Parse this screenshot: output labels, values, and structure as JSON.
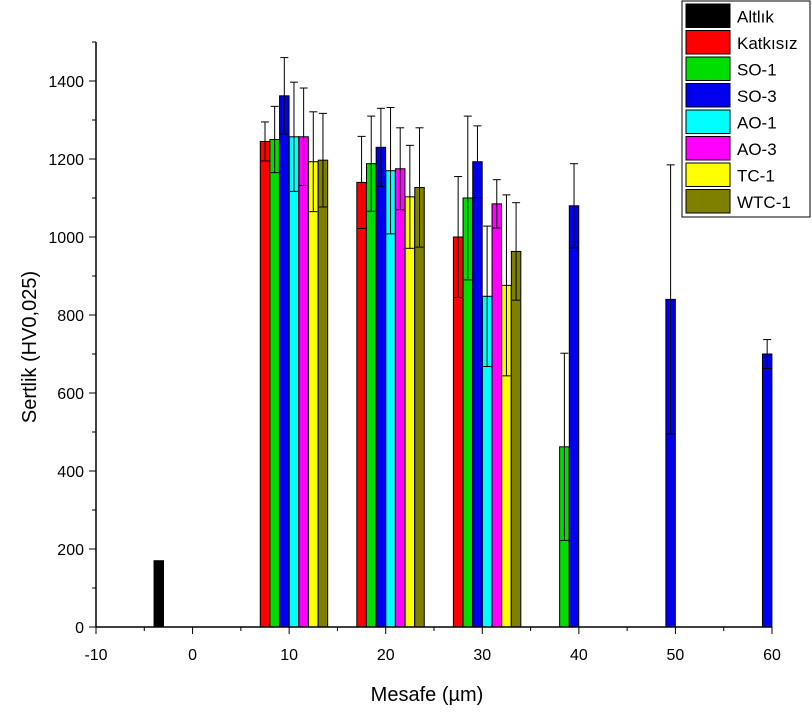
{
  "chart_data": {
    "type": "bar",
    "xlabel": "Mesafe (µm)",
    "ylabel": "Sertlik (HV0,025)",
    "xlim": [
      -10,
      60
    ],
    "ylim": [
      0,
      1500
    ],
    "x_ticks": [
      "-10",
      "0",
      "10",
      "20",
      "30",
      "40",
      "50",
      "60"
    ],
    "y_ticks": [
      "0",
      "200",
      "400",
      "600",
      "800",
      "1000",
      "1200",
      "1400"
    ],
    "legend_position": "top-right",
    "series": [
      {
        "name": "Altlık",
        "color": "#000000",
        "points": [
          {
            "x": -3.5,
            "y": 170,
            "err": 0
          }
        ]
      },
      {
        "name": "Katkısız",
        "color": "#ff0000",
        "points": [
          {
            "x": 7.5,
            "y": 1245,
            "err": 50
          },
          {
            "x": 17.5,
            "y": 1140,
            "err": 118
          },
          {
            "x": 27.5,
            "y": 1000,
            "err": 155
          }
        ]
      },
      {
        "name": "SO-1",
        "color": "#00dd00",
        "points": [
          {
            "x": 8.5,
            "y": 1250,
            "err": 85
          },
          {
            "x": 18.5,
            "y": 1188,
            "err": 122
          },
          {
            "x": 28.5,
            "y": 1100,
            "err": 210
          },
          {
            "x": 38.5,
            "y": 462,
            "err": 240
          }
        ]
      },
      {
        "name": "SO-3",
        "color": "#0000ee",
        "points": [
          {
            "x": 9.5,
            "y": 1362,
            "err": 98
          },
          {
            "x": 19.5,
            "y": 1230,
            "err": 100
          },
          {
            "x": 29.5,
            "y": 1193,
            "err": 92
          },
          {
            "x": 39.5,
            "y": 1080,
            "err": 108
          },
          {
            "x": 49.5,
            "y": 840,
            "err": 345
          },
          {
            "x": 59.5,
            "y": 700,
            "err": 37
          }
        ]
      },
      {
        "name": "AO-1",
        "color": "#00ffff",
        "points": [
          {
            "x": 10.5,
            "y": 1257,
            "err": 140
          },
          {
            "x": 20.5,
            "y": 1170,
            "err": 162
          },
          {
            "x": 30.5,
            "y": 848,
            "err": 180
          }
        ]
      },
      {
        "name": "AO-3",
        "color": "#ff00ff",
        "points": [
          {
            "x": 11.5,
            "y": 1257,
            "err": 125
          },
          {
            "x": 21.5,
            "y": 1175,
            "err": 105
          },
          {
            "x": 31.5,
            "y": 1085,
            "err": 62
          }
        ]
      },
      {
        "name": "TC-1",
        "color": "#ffff00",
        "points": [
          {
            "x": 12.5,
            "y": 1193,
            "err": 128
          },
          {
            "x": 22.5,
            "y": 1103,
            "err": 132
          },
          {
            "x": 32.5,
            "y": 876,
            "err": 232
          }
        ]
      },
      {
        "name": "WTC-1",
        "color": "#808000",
        "points": [
          {
            "x": 13.5,
            "y": 1197,
            "err": 120
          },
          {
            "x": 23.5,
            "y": 1127,
            "err": 153
          },
          {
            "x": 33.5,
            "y": 963,
            "err": 125
          }
        ]
      }
    ]
  }
}
